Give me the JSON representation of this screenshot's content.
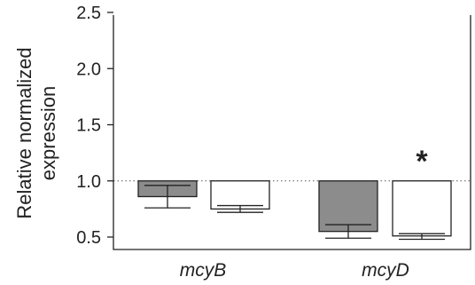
{
  "chart_data": {
    "type": "bar",
    "ylabel_lines": [
      "Relative normalized",
      "expression"
    ],
    "categories": [
      "mcyB",
      "mcyD"
    ],
    "ylim": [
      0.45,
      2.5
    ],
    "yticks": [
      "0.5",
      "1.0",
      "1.5",
      "2.0",
      "2.5"
    ],
    "reference_line": 1.0,
    "series": [
      {
        "color": "#8c8c8c",
        "values": [
          {
            "top": 1.0,
            "bottom": 0.86,
            "mean": 0.96,
            "lower": 0.76
          },
          {
            "top": 1.0,
            "bottom": 0.55,
            "mean": 0.61,
            "lower": 0.49
          }
        ]
      },
      {
        "color": "#ffffff",
        "values": [
          {
            "top": 1.0,
            "bottom": 0.75,
            "mean": 0.78,
            "lower": 0.72
          },
          {
            "top": 1.0,
            "bottom": 0.51,
            "mean": 0.53,
            "lower": 0.48
          }
        ]
      }
    ],
    "annotations": [
      {
        "text": "*",
        "category": "mcyD",
        "series": 1
      }
    ]
  }
}
